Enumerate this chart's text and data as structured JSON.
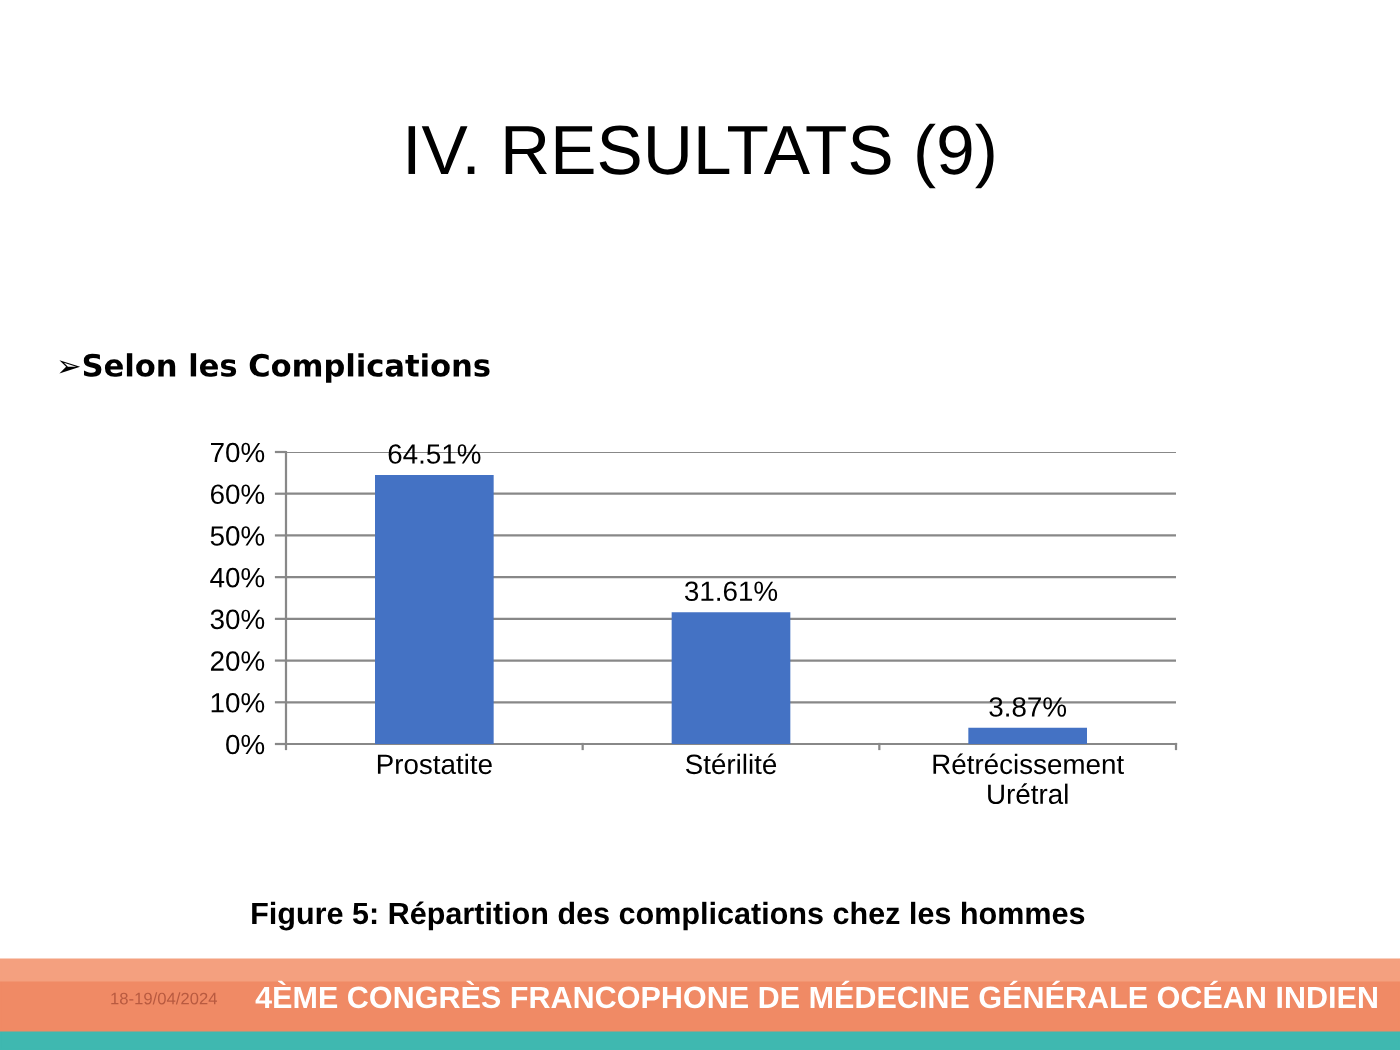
{
  "chart_data": {
    "type": "bar",
    "title": "IV. RESULTATS (9)",
    "subtitle": "➢Selon les Complications",
    "categories": [
      "Prostatite",
      "Stérilité",
      "Rétrécissement\nUrétral"
    ],
    "values": [
      64.51,
      31.61,
      3.87
    ],
    "color": "#4472c4",
    "value_labels": [
      "64.51%",
      "31.61%",
      "3.87%"
    ],
    "ylim": [
      0,
      70
    ],
    "yticks": [
      {
        "value": 0,
        "label": "0%"
      },
      {
        "value": 10,
        "label": "10%"
      },
      {
        "value": 20,
        "label": "20%"
      },
      {
        "value": 30,
        "label": "30%"
      },
      {
        "value": 40,
        "label": "40%"
      },
      {
        "value": 50,
        "label": "50%"
      },
      {
        "value": 60,
        "label": "60%"
      },
      {
        "value": 70,
        "label": "70%"
      }
    ],
    "grid": "y",
    "legend": false,
    "annotations": [
      "Figure 5: Répartition des complications chez les hommes",
      "18-19/04/2024",
      "4ÈME CONGRÈS FRANCOPHONE DE MÉDECINE GÉNÉRALE OCÉAN INDIEN"
    ]
  }
}
